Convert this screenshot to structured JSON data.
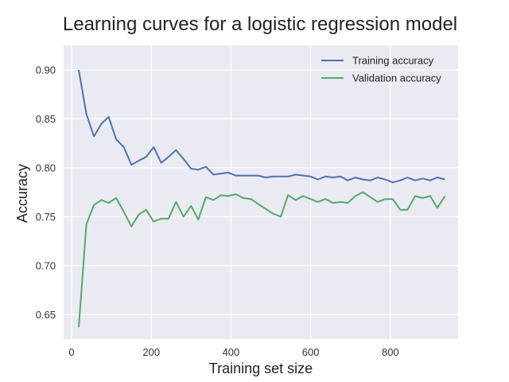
{
  "chart_data": {
    "type": "line",
    "title": "Learning curves for a logistic regression model",
    "xlabel": "Training set size",
    "ylabel": "Accuracy",
    "xlim": [
      -20,
      970
    ],
    "ylim": [
      0.625,
      0.925
    ],
    "xticks": [
      0,
      200,
      400,
      600,
      800
    ],
    "yticks": [
      0.65,
      0.7,
      0.75,
      0.8,
      0.85,
      0.9
    ],
    "ytick_labels": [
      "0.65",
      "0.70",
      "0.75",
      "0.80",
      "0.85",
      "0.90"
    ],
    "grid": true,
    "legend_position": "top-right",
    "x": [
      18,
      37,
      56,
      75,
      93,
      112,
      131,
      150,
      168,
      187,
      206,
      225,
      243,
      262,
      281,
      300,
      318,
      337,
      356,
      375,
      393,
      412,
      431,
      450,
      468,
      487,
      506,
      525,
      543,
      562,
      581,
      600,
      618,
      637,
      656,
      675,
      693,
      712,
      731,
      750,
      768,
      787,
      806,
      825,
      843,
      862,
      881,
      900,
      918,
      937
    ],
    "series": [
      {
        "name": "Training accuracy",
        "color": "#4c72b0",
        "values": [
          0.9,
          0.855,
          0.832,
          0.845,
          0.852,
          0.829,
          0.821,
          0.803,
          0.807,
          0.811,
          0.821,
          0.805,
          0.811,
          0.818,
          0.809,
          0.799,
          0.798,
          0.801,
          0.793,
          0.794,
          0.795,
          0.792,
          0.792,
          0.792,
          0.792,
          0.79,
          0.791,
          0.791,
          0.791,
          0.793,
          0.792,
          0.791,
          0.788,
          0.791,
          0.79,
          0.791,
          0.787,
          0.79,
          0.788,
          0.787,
          0.79,
          0.788,
          0.785,
          0.787,
          0.79,
          0.787,
          0.789,
          0.787,
          0.79,
          0.788
        ]
      },
      {
        "name": "Validation accuracy",
        "color": "#55a868",
        "values": [
          0.637,
          0.742,
          0.762,
          0.767,
          0.764,
          0.769,
          0.755,
          0.74,
          0.752,
          0.757,
          0.745,
          0.748,
          0.748,
          0.765,
          0.75,
          0.761,
          0.747,
          0.77,
          0.767,
          0.772,
          0.771,
          0.773,
          0.769,
          0.768,
          0.763,
          0.758,
          0.753,
          0.75,
          0.772,
          0.767,
          0.771,
          0.768,
          0.765,
          0.768,
          0.764,
          0.765,
          0.764,
          0.771,
          0.775,
          0.77,
          0.765,
          0.768,
          0.768,
          0.757,
          0.757,
          0.771,
          0.769,
          0.771,
          0.759,
          0.771
        ]
      }
    ]
  }
}
